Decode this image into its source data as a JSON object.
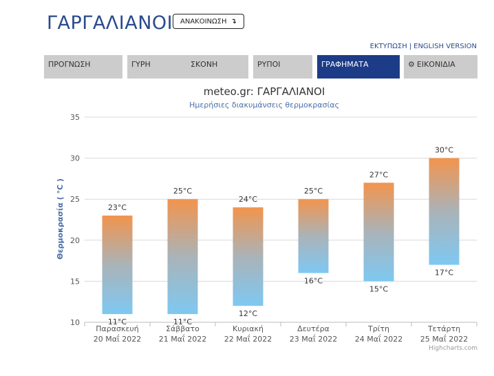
{
  "page": {
    "title": "ΓΑΡΓΑΛΙΑΝΟΙ",
    "announce_label": "ΑΝΑΚΟΙΝΩΣΗ",
    "announce_icon": "return-arrow-icon"
  },
  "links": {
    "print": "ΕΚΤΥΠΩΣΗ",
    "separator": "|",
    "english": "ENGLISH VERSION"
  },
  "tabs": [
    {
      "label": "ΠΡΟΓΝΩΣΗ",
      "active": false
    },
    {
      "label": "ΓΥΡΗ",
      "active": false
    },
    {
      "label": "ΣΚΟΝΗ",
      "active": false
    },
    {
      "label": "ΡΥΠΟΙ",
      "active": false
    },
    {
      "label": "ΓΡΑΦΗΜΑΤΑ",
      "active": true
    },
    {
      "label": "ΕΙΚΟΝΙΔΙΑ",
      "active": false,
      "icon": "gear-icon"
    }
  ],
  "chart_data": {
    "type": "bar",
    "subtype": "range-column",
    "title": "meteo.gr: ΓΑΡΓΑΛΙΑΝΟΙ",
    "subtitle": "Ημερήσιες διακυμάνσεις θερμοκρασίας",
    "ylabel": "Θερμοκρασία ( °C )",
    "ylim": [
      10,
      35
    ],
    "yticks": [
      10,
      15,
      20,
      25,
      30,
      35
    ],
    "grid": true,
    "unit": "°C",
    "categories": [
      [
        "Παρασκευή",
        "20 Μαΐ 2022"
      ],
      [
        "Σάββατο",
        "21 Μαΐ 2022"
      ],
      [
        "Κυριακή",
        "22 Μαΐ 2022"
      ],
      [
        "Δευτέρα",
        "23 Μαΐ 2022"
      ],
      [
        "Τρίτη",
        "24 Μαΐ 2022"
      ],
      [
        "Τετάρτη",
        "25 Μαΐ 2022"
      ]
    ],
    "series": [
      {
        "low": [
          11,
          11,
          12,
          16,
          15,
          17
        ],
        "high": [
          23,
          25,
          24,
          25,
          27,
          30
        ]
      }
    ],
    "colors": {
      "high": "#f2944d",
      "mid": "#aab3b8",
      "low": "#7ec8f2",
      "grid": "#d8d8d8",
      "title": "#333333",
      "subtitle": "#4a6ea8",
      "ylabel": "#4a6ea8"
    },
    "credits": "Highcharts.com"
  }
}
